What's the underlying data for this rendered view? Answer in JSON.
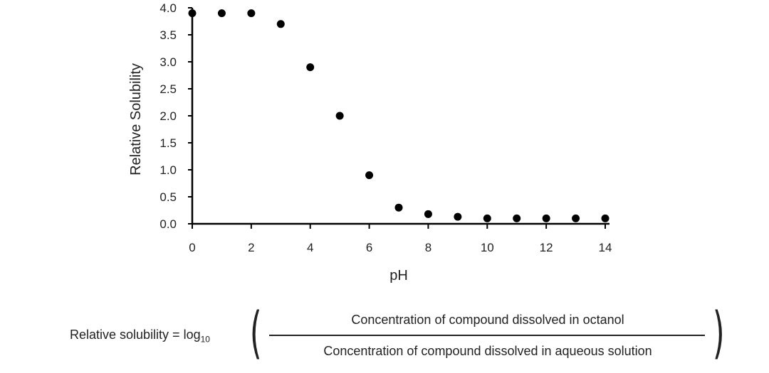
{
  "chart_data": {
    "type": "scatter",
    "title": "",
    "xlabel": "pH",
    "ylabel": "Relative Solubility",
    "xlim": [
      0,
      14
    ],
    "ylim": [
      0,
      4
    ],
    "x_ticks": [
      "0",
      "2",
      "4",
      "6",
      "8",
      "10",
      "12",
      "14"
    ],
    "y_ticks": [
      "0.0",
      "0.5",
      "1.0",
      "1.5",
      "2.0",
      "2.5",
      "3.0",
      "3.5",
      "4.0"
    ],
    "grid": false,
    "series": [
      {
        "name": "Relative Solubility",
        "color": "#000000",
        "x": [
          0,
          1,
          2,
          3,
          4,
          5,
          6,
          7,
          8,
          9,
          10,
          11,
          12,
          13,
          14
        ],
        "y": [
          3.9,
          3.9,
          3.9,
          3.7,
          2.9,
          2.0,
          0.9,
          0.3,
          0.18,
          0.13,
          0.1,
          0.1,
          0.1,
          0.1,
          0.1
        ]
      }
    ]
  },
  "formula": {
    "lhs_text": "Relative solubility = log",
    "lhs_subscript": "10",
    "left_paren": "(",
    "right_paren": ")",
    "numerator": "Concentration of compound  dissolved in octanol",
    "denominator": "Concentration of compound  dissolved in aqueous solution"
  }
}
